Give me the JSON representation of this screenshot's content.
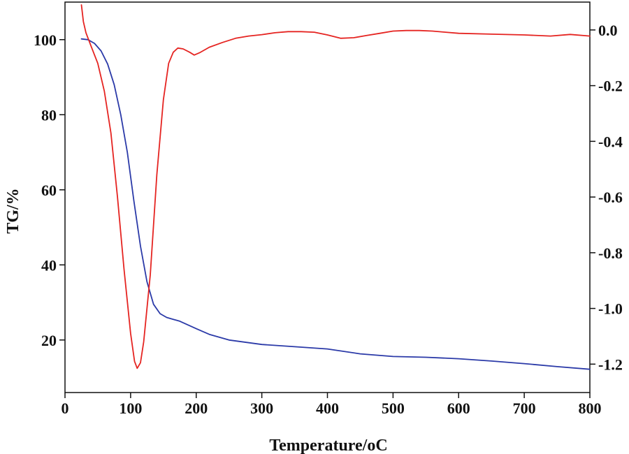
{
  "chart_data": {
    "type": "line",
    "xlabel": "Temperature/oC",
    "ylabel": "TG/%",
    "ylabel_right": "",
    "xlim": [
      0,
      800
    ],
    "ylim": [
      6,
      110
    ],
    "ylim_right": [
      -1.302,
      0.1
    ],
    "grid": false,
    "legend": "none",
    "x_ticks": [
      {
        "value": 0,
        "label": "0"
      },
      {
        "value": 100,
        "label": "100"
      },
      {
        "value": 200,
        "label": "200"
      },
      {
        "value": 300,
        "label": "300"
      },
      {
        "value": 400,
        "label": "400"
      },
      {
        "value": 500,
        "label": "500"
      },
      {
        "value": 600,
        "label": "600"
      },
      {
        "value": 700,
        "label": "700"
      },
      {
        "value": 800,
        "label": "800"
      }
    ],
    "y_ticks": [
      {
        "value": 20,
        "label": "20"
      },
      {
        "value": 40,
        "label": "40"
      },
      {
        "value": 60,
        "label": "60"
      },
      {
        "value": 80,
        "label": "80"
      },
      {
        "value": 100,
        "label": "100"
      }
    ],
    "y_ticks_right": [
      {
        "value": 0.0,
        "label": "0.0"
      },
      {
        "value": -0.2,
        "label": "-0.2"
      },
      {
        "value": -0.4,
        "label": "-0.4"
      },
      {
        "value": -0.6,
        "label": "-0.6"
      },
      {
        "value": -0.8,
        "label": "-0.8"
      },
      {
        "value": -1.0,
        "label": "-1.0"
      },
      {
        "value": -1.2,
        "label": "-1.2"
      }
    ],
    "series": [
      {
        "axis": "left",
        "color": "#2b3aa8",
        "points": [
          [
            25,
            100.2
          ],
          [
            35,
            100.0
          ],
          [
            45,
            99.0
          ],
          [
            55,
            97.0
          ],
          [
            65,
            93.5
          ],
          [
            75,
            88.0
          ],
          [
            85,
            80.0
          ],
          [
            95,
            70.0
          ],
          [
            105,
            57.0
          ],
          [
            115,
            45.0
          ],
          [
            125,
            35.5
          ],
          [
            135,
            29.5
          ],
          [
            145,
            27.0
          ],
          [
            155,
            26.0
          ],
          [
            165,
            25.5
          ],
          [
            175,
            25.0
          ],
          [
            185,
            24.2
          ],
          [
            200,
            23.0
          ],
          [
            220,
            21.5
          ],
          [
            250,
            20.0
          ],
          [
            300,
            18.8
          ],
          [
            350,
            18.2
          ],
          [
            400,
            17.6
          ],
          [
            450,
            16.3
          ],
          [
            500,
            15.6
          ],
          [
            550,
            15.4
          ],
          [
            600,
            15.0
          ],
          [
            650,
            14.4
          ],
          [
            700,
            13.7
          ],
          [
            750,
            12.9
          ],
          [
            800,
            12.2
          ]
        ]
      },
      {
        "axis": "right",
        "color": "#e52421",
        "points": [
          [
            25,
            0.09
          ],
          [
            28,
            0.03
          ],
          [
            32,
            -0.01
          ],
          [
            40,
            -0.06
          ],
          [
            50,
            -0.12
          ],
          [
            60,
            -0.22
          ],
          [
            70,
            -0.37
          ],
          [
            80,
            -0.6
          ],
          [
            90,
            -0.86
          ],
          [
            100,
            -1.09
          ],
          [
            106,
            -1.19
          ],
          [
            110,
            -1.215
          ],
          [
            115,
            -1.195
          ],
          [
            120,
            -1.12
          ],
          [
            130,
            -0.88
          ],
          [
            140,
            -0.52
          ],
          [
            150,
            -0.25
          ],
          [
            158,
            -0.12
          ],
          [
            165,
            -0.08
          ],
          [
            172,
            -0.065
          ],
          [
            180,
            -0.068
          ],
          [
            190,
            -0.08
          ],
          [
            197,
            -0.09
          ],
          [
            205,
            -0.082
          ],
          [
            220,
            -0.062
          ],
          [
            240,
            -0.045
          ],
          [
            260,
            -0.03
          ],
          [
            280,
            -0.022
          ],
          [
            300,
            -0.017
          ],
          [
            320,
            -0.01
          ],
          [
            340,
            -0.006
          ],
          [
            360,
            -0.006
          ],
          [
            380,
            -0.008
          ],
          [
            400,
            -0.018
          ],
          [
            420,
            -0.03
          ],
          [
            440,
            -0.028
          ],
          [
            460,
            -0.02
          ],
          [
            480,
            -0.012
          ],
          [
            500,
            -0.004
          ],
          [
            520,
            -0.002
          ],
          [
            540,
            -0.002
          ],
          [
            560,
            -0.004
          ],
          [
            580,
            -0.008
          ],
          [
            600,
            -0.012
          ],
          [
            650,
            -0.015
          ],
          [
            700,
            -0.018
          ],
          [
            740,
            -0.022
          ],
          [
            770,
            -0.016
          ],
          [
            800,
            -0.022
          ]
        ]
      }
    ]
  }
}
